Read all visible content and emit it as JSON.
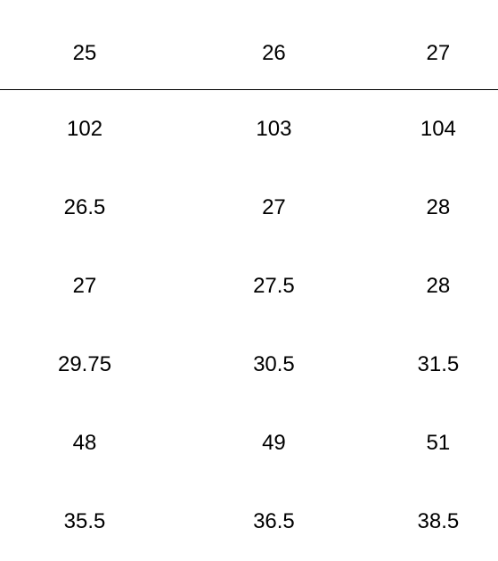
{
  "table": {
    "type": "table",
    "background_color": "#ffffff",
    "text_color": "#000000",
    "border_color": "#000000",
    "font_size": 24,
    "header": [
      "25",
      "26",
      "27"
    ],
    "rows": [
      [
        "102",
        "103",
        "104"
      ],
      [
        "26.5",
        "27",
        "28"
      ],
      [
        "27",
        "27.5",
        "28"
      ],
      [
        "29.75",
        "30.5",
        "31.5"
      ],
      [
        "48",
        "49",
        "51"
      ],
      [
        "35.5",
        "36.5",
        "38.5"
      ]
    ]
  }
}
